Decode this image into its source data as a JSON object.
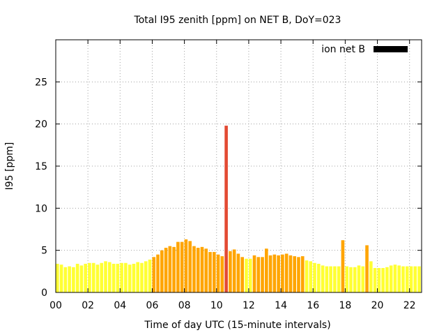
{
  "chart_data": {
    "type": "bar",
    "title": "Total I95 zenith [ppm] on NET B, DoY=023",
    "xlabel": "Time of day UTC (15-minute intervals)",
    "ylabel": "I95 [ppm]",
    "xlim": [
      0,
      22.75
    ],
    "ylim": [
      0,
      30
    ],
    "x_ticks": [
      "00",
      "02",
      "04",
      "06",
      "08",
      "10",
      "12",
      "14",
      "16",
      "18",
      "20",
      "22"
    ],
    "y_ticks": [
      "0",
      "5",
      "10",
      "15",
      "20",
      "25"
    ],
    "grid": true,
    "legend": {
      "position": "top-right",
      "label": "ion net B",
      "swatch_color": "#000000"
    },
    "bar_width_hours": 0.2,
    "series": [
      {
        "values": [
          3.4,
          3.3,
          3.0,
          3.1,
          3.0,
          3.4,
          3.2,
          3.4,
          3.5,
          3.5,
          3.3,
          3.5,
          3.7,
          3.6,
          3.4,
          3.4,
          3.5,
          3.5,
          3.3,
          3.4,
          3.6,
          3.5,
          3.7,
          3.9,
          4.2,
          4.5,
          5.0,
          5.3,
          5.5,
          5.4,
          6.0,
          6.0,
          6.3,
          6.1,
          5.5,
          5.3,
          5.4,
          5.2,
          4.8,
          4.8,
          4.5,
          4.3,
          19.8,
          4.9,
          5.1,
          4.6,
          4.2,
          4.0,
          4.0,
          4.4,
          4.2,
          4.2,
          5.2,
          4.4,
          4.5,
          4.4,
          4.5,
          4.6,
          4.4,
          4.3,
          4.2,
          4.3,
          3.8,
          3.7,
          3.5,
          3.4,
          3.2,
          3.1,
          3.1,
          3.1,
          3.1,
          6.2,
          3.1,
          3.0,
          3.0,
          3.2,
          3.1,
          5.6,
          3.7,
          2.9,
          2.9,
          2.9,
          3.0,
          3.2,
          3.3,
          3.2,
          3.1,
          3.1,
          3.1,
          3.1,
          3.1
        ],
        "levels": [
          0,
          0,
          0,
          0,
          0,
          0,
          0,
          0,
          0,
          0,
          0,
          0,
          0,
          0,
          0,
          0,
          0,
          0,
          0,
          0,
          0,
          0,
          0,
          0,
          1,
          1,
          1,
          1,
          1,
          1,
          1,
          1,
          1,
          1,
          1,
          1,
          1,
          1,
          1,
          1,
          1,
          1,
          2,
          1,
          1,
          1,
          1,
          0,
          0,
          1,
          1,
          1,
          1,
          1,
          1,
          1,
          1,
          1,
          1,
          1,
          1,
          1,
          0,
          0,
          0,
          0,
          0,
          0,
          0,
          0,
          0,
          1,
          0,
          0,
          0,
          0,
          0,
          1,
          0,
          0,
          0,
          0,
          0,
          0,
          0,
          0,
          0,
          0,
          0,
          0,
          0
        ]
      }
    ],
    "level_colors": [
      "#ffff33",
      "#ffa500",
      "#e34a33"
    ]
  }
}
